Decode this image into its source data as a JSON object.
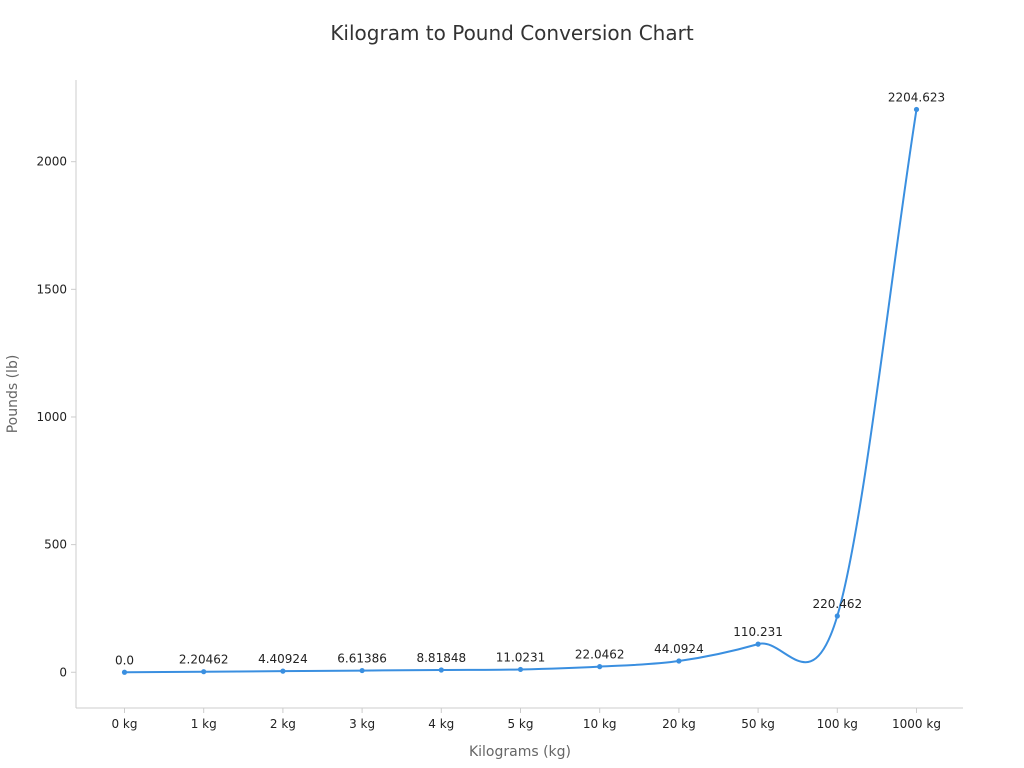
{
  "chart_data": {
    "type": "line",
    "title": "Kilogram to Pound Conversion Chart",
    "xlabel": "Kilograms (kg)",
    "ylabel": "Pounds (lb)",
    "categories": [
      "0 kg",
      "1 kg",
      "2 kg",
      "3 kg",
      "4 kg",
      "5 kg",
      "10 kg",
      "20 kg",
      "50 kg",
      "100 kg",
      "1000 kg"
    ],
    "series": [
      {
        "values": [
          0.0,
          2.20462,
          4.40924,
          6.61386,
          8.81848,
          11.0231,
          22.0462,
          44.0924,
          110.231,
          220.462,
          2204.623
        ],
        "data_labels": [
          "0.0",
          "2.20462",
          "4.40924",
          "6.61386",
          "8.81848",
          "11.0231",
          "22.0462",
          "44.0924",
          "110.231",
          "220.462",
          "2204.623"
        ],
        "color": "#3a8fe0"
      }
    ],
    "y_ticks": [
      0,
      500,
      1000,
      1500,
      2000
    ],
    "ylim": [
      -140,
      2320
    ],
    "grid": false,
    "smooth": true,
    "legend": "none"
  }
}
